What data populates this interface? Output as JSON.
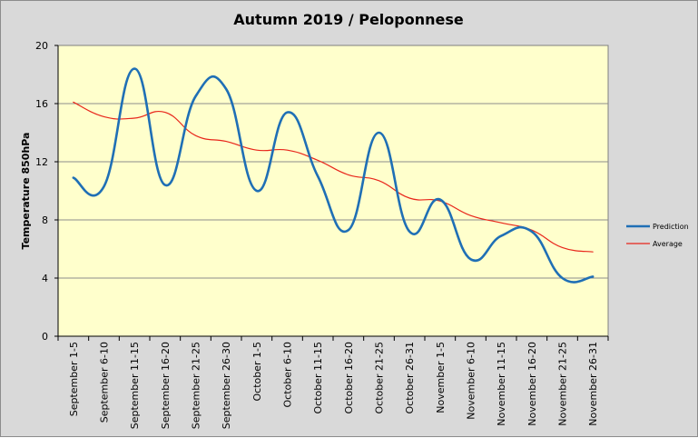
{
  "chart_data": {
    "type": "line",
    "title": "Autumn 2019 / Peloponnese",
    "xlabel": "",
    "ylabel": "Temperature 850hPa",
    "ylim": [
      0,
      20
    ],
    "yticks": [
      0,
      4,
      8,
      12,
      16,
      20
    ],
    "grid": true,
    "legend_position": "right",
    "categories": [
      "September 1-5",
      "September 6-10",
      "September 11-15",
      "September 16-20",
      "September 21-25",
      "September 26-30",
      "October 1-5",
      "October 6-10",
      "October 11-15",
      "October 16-20",
      "October 21-25",
      "October 26-31",
      "November 1-5",
      "November 6-10",
      "November 11-15",
      "November 16-20",
      "November 21-25",
      "November 26-31"
    ],
    "series": [
      {
        "name": "Prediction",
        "color": "#1f6fb5",
        "values": [
          10.9,
          10.3,
          18.4,
          10.4,
          16.5,
          17.0,
          10.0,
          15.4,
          11.0,
          7.3,
          14.0,
          7.2,
          9.4,
          5.3,
          6.9,
          7.2,
          4.0,
          4.1
        ]
      },
      {
        "name": "Average",
        "color": "#e8261b",
        "values": [
          16.1,
          15.1,
          15.0,
          15.4,
          13.8,
          13.4,
          12.8,
          12.8,
          12.1,
          11.1,
          10.7,
          9.5,
          9.3,
          8.3,
          7.8,
          7.3,
          6.1,
          5.8
        ]
      }
    ]
  },
  "colors": {
    "plot_background": "#ffffcc",
    "chart_background": "#d9d9d9",
    "gridline": "#8c8c8c"
  }
}
